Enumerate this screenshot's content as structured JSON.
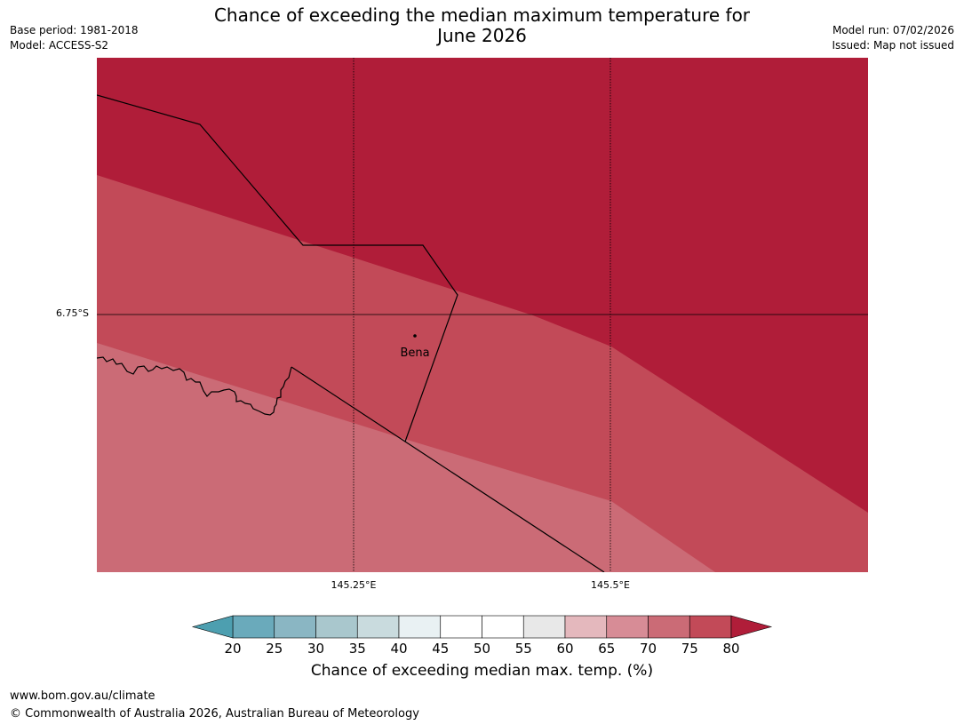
{
  "header": {
    "title_line1": "Chance of exceeding the median maximum temperature for",
    "title_line2": "June 2026",
    "base_period": "Base period: 1981-2018",
    "model": "Model: ACCESS-S2",
    "model_run": "Model run: 07/02/2026",
    "issued": "Issued: Map not issued"
  },
  "map": {
    "latitude_label": "6.75°S",
    "longitude_labels": [
      "145.25°E",
      "145.5°E"
    ],
    "place_name": "Bena",
    "zone_colors": {
      "gt80": "#b01d39",
      "p75_80": "#c24a58",
      "p70_75": "#cb6b76"
    }
  },
  "colorbar": {
    "title": "Chance of exceeding median max. temp. (%)",
    "tick_labels": [
      "20",
      "25",
      "30",
      "35",
      "40",
      "45",
      "50",
      "55",
      "60",
      "65",
      "70",
      "75",
      "80"
    ],
    "below_color": "#4d9fb0",
    "above_color": "#b01d39",
    "bin_colors": [
      "#6aaabb",
      "#8ab6c3",
      "#a9c7cd",
      "#c9dbde",
      "#e9f1f3",
      "#ffffff",
      "#ffffff",
      "#e8e8e8",
      "#e4b8bd",
      "#d78c96",
      "#cb6b76",
      "#c24a58"
    ]
  },
  "footer": {
    "url": "www.bom.gov.au/climate",
    "copyright": "© Commonwealth of Australia 2026, Australian Bureau of Meteorology"
  }
}
